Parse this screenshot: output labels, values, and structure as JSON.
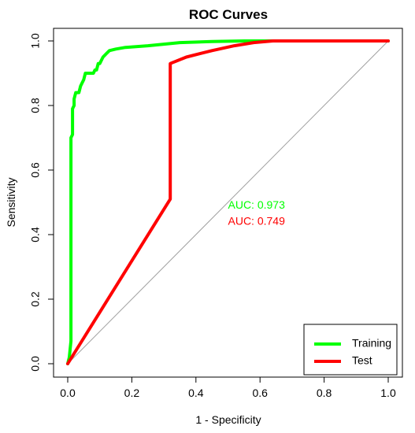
{
  "chart_data": {
    "type": "line",
    "title": "ROC Curves",
    "xlabel": "1 - Specificity",
    "ylabel": "Sensitivity",
    "xlim": [
      0,
      1
    ],
    "ylim": [
      0,
      1
    ],
    "x_ticks": [
      "0.0",
      "0.2",
      "0.4",
      "0.6",
      "0.8",
      "1.0"
    ],
    "y_ticks": [
      "0.0",
      "0.2",
      "0.4",
      "0.6",
      "0.8",
      "1.0"
    ],
    "grid": false,
    "legend_position": "bottom-right",
    "reference_line": {
      "from": [
        0,
        0
      ],
      "to": [
        1,
        1
      ],
      "color": "#a0a0a0"
    },
    "series": [
      {
        "name": "Training",
        "color": "#00ff00",
        "points": [
          [
            0.0,
            0.0
          ],
          [
            0.005,
            0.02
          ],
          [
            0.01,
            0.07
          ],
          [
            0.01,
            0.7
          ],
          [
            0.015,
            0.71
          ],
          [
            0.015,
            0.79
          ],
          [
            0.02,
            0.8
          ],
          [
            0.02,
            0.82
          ],
          [
            0.025,
            0.84
          ],
          [
            0.035,
            0.84
          ],
          [
            0.04,
            0.86
          ],
          [
            0.045,
            0.87
          ],
          [
            0.05,
            0.88
          ],
          [
            0.055,
            0.9
          ],
          [
            0.06,
            0.9
          ],
          [
            0.08,
            0.9
          ],
          [
            0.085,
            0.91
          ],
          [
            0.09,
            0.91
          ],
          [
            0.095,
            0.93
          ],
          [
            0.1,
            0.93
          ],
          [
            0.11,
            0.95
          ],
          [
            0.12,
            0.96
          ],
          [
            0.13,
            0.97
          ],
          [
            0.15,
            0.975
          ],
          [
            0.18,
            0.98
          ],
          [
            0.25,
            0.985
          ],
          [
            0.3,
            0.99
          ],
          [
            0.35,
            0.995
          ],
          [
            0.45,
            0.998
          ],
          [
            0.55,
            1.0
          ],
          [
            0.65,
            1.0
          ],
          [
            1.0,
            1.0
          ]
        ]
      },
      {
        "name": "Test",
        "color": "#ff0000",
        "points": [
          [
            0.0,
            0.0
          ],
          [
            0.32,
            0.51
          ],
          [
            0.32,
            0.93
          ],
          [
            0.37,
            0.95
          ],
          [
            0.45,
            0.97
          ],
          [
            0.52,
            0.985
          ],
          [
            0.58,
            0.995
          ],
          [
            0.64,
            1.0
          ],
          [
            1.0,
            1.0
          ]
        ]
      }
    ],
    "annotations": [
      {
        "text": "AUC: 0.973",
        "x": 0.5,
        "y": 0.48,
        "color": "#00ff00"
      },
      {
        "text": "AUC: 0.749",
        "x": 0.5,
        "y": 0.43,
        "color": "#ff0000"
      }
    ]
  }
}
